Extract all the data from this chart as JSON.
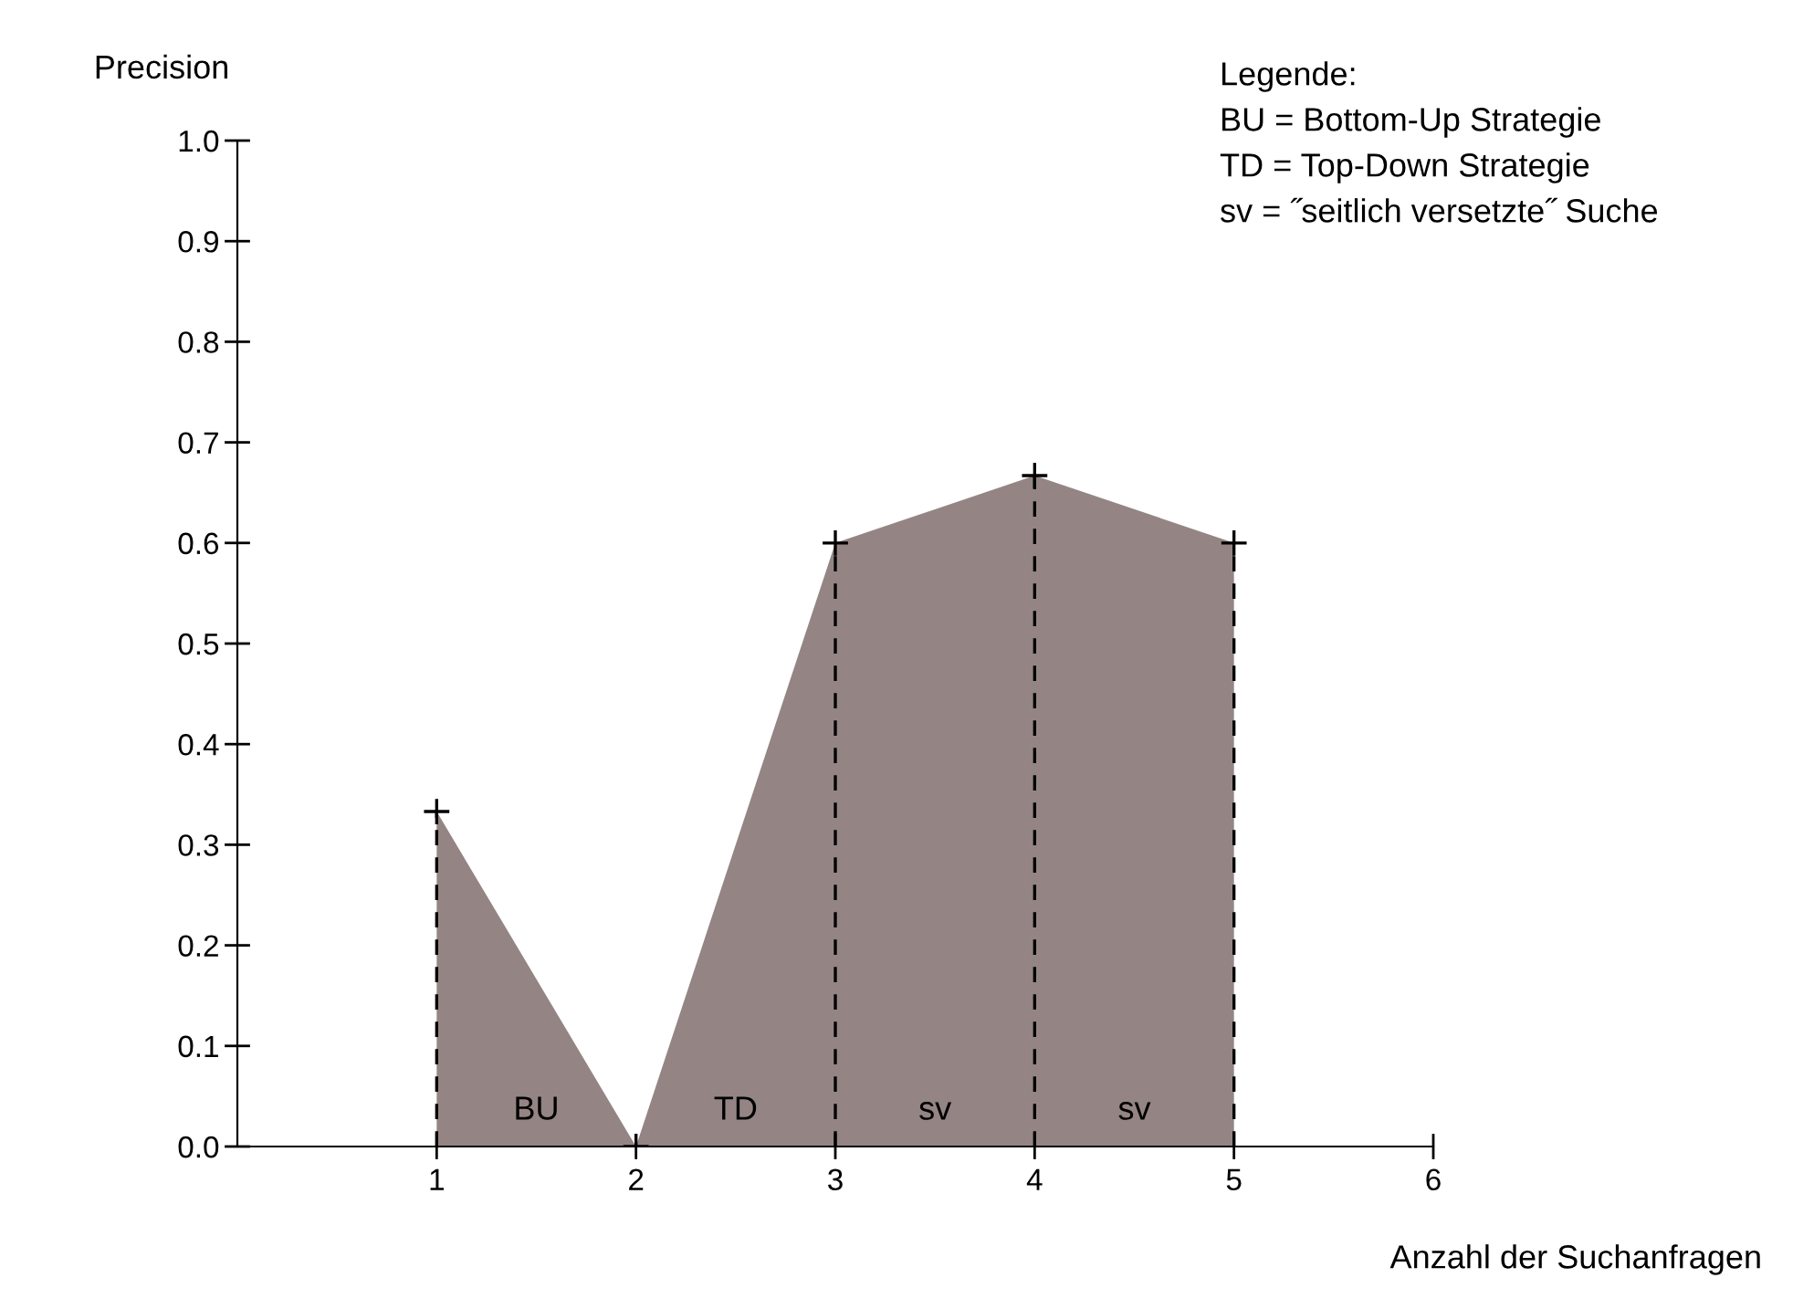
{
  "chart_data": {
    "type": "area",
    "x": [
      1,
      2,
      3,
      4,
      5
    ],
    "values": [
      0.333,
      0,
      0.6,
      0.667,
      0.6
    ],
    "color": "#948584",
    "marker": "cross",
    "xlim": [
      0,
      6
    ],
    "xticks": [
      1,
      2,
      3,
      4,
      5,
      6
    ],
    "ylim": [
      0,
      1.0
    ],
    "yticks": [
      {
        "value": 0,
        "label": "0.0"
      },
      0.1,
      0.2,
      0.3,
      0.4,
      0.5,
      0.6,
      0.7,
      0.8,
      0.9,
      {
        "value": 1.0,
        "label": "1.0"
      }
    ],
    "ylabel": "Precision",
    "xlabel": "Anzahl der Suchanfragen",
    "grid": false,
    "legend": false,
    "ref_lines": [
      {
        "axis": "x",
        "value": 1,
        "line_style": "dashed",
        "color": "#000000"
      },
      {
        "axis": "x",
        "value": 3,
        "line_style": "dashed",
        "color": "#000000"
      },
      {
        "axis": "x",
        "value": 4,
        "line_style": "dashed",
        "color": "#000000"
      },
      {
        "axis": "x",
        "value": 5,
        "line_style": "dashed",
        "color": "#000000"
      }
    ],
    "annotations": [
      "BU",
      "TD",
      "sv",
      "sv",
      "Legende:",
      "BU = Bottom-Up Strategie",
      "TD = Top-Down Strategie",
      "sv = ˝seitlich versetzte˝ Suche"
    ]
  }
}
